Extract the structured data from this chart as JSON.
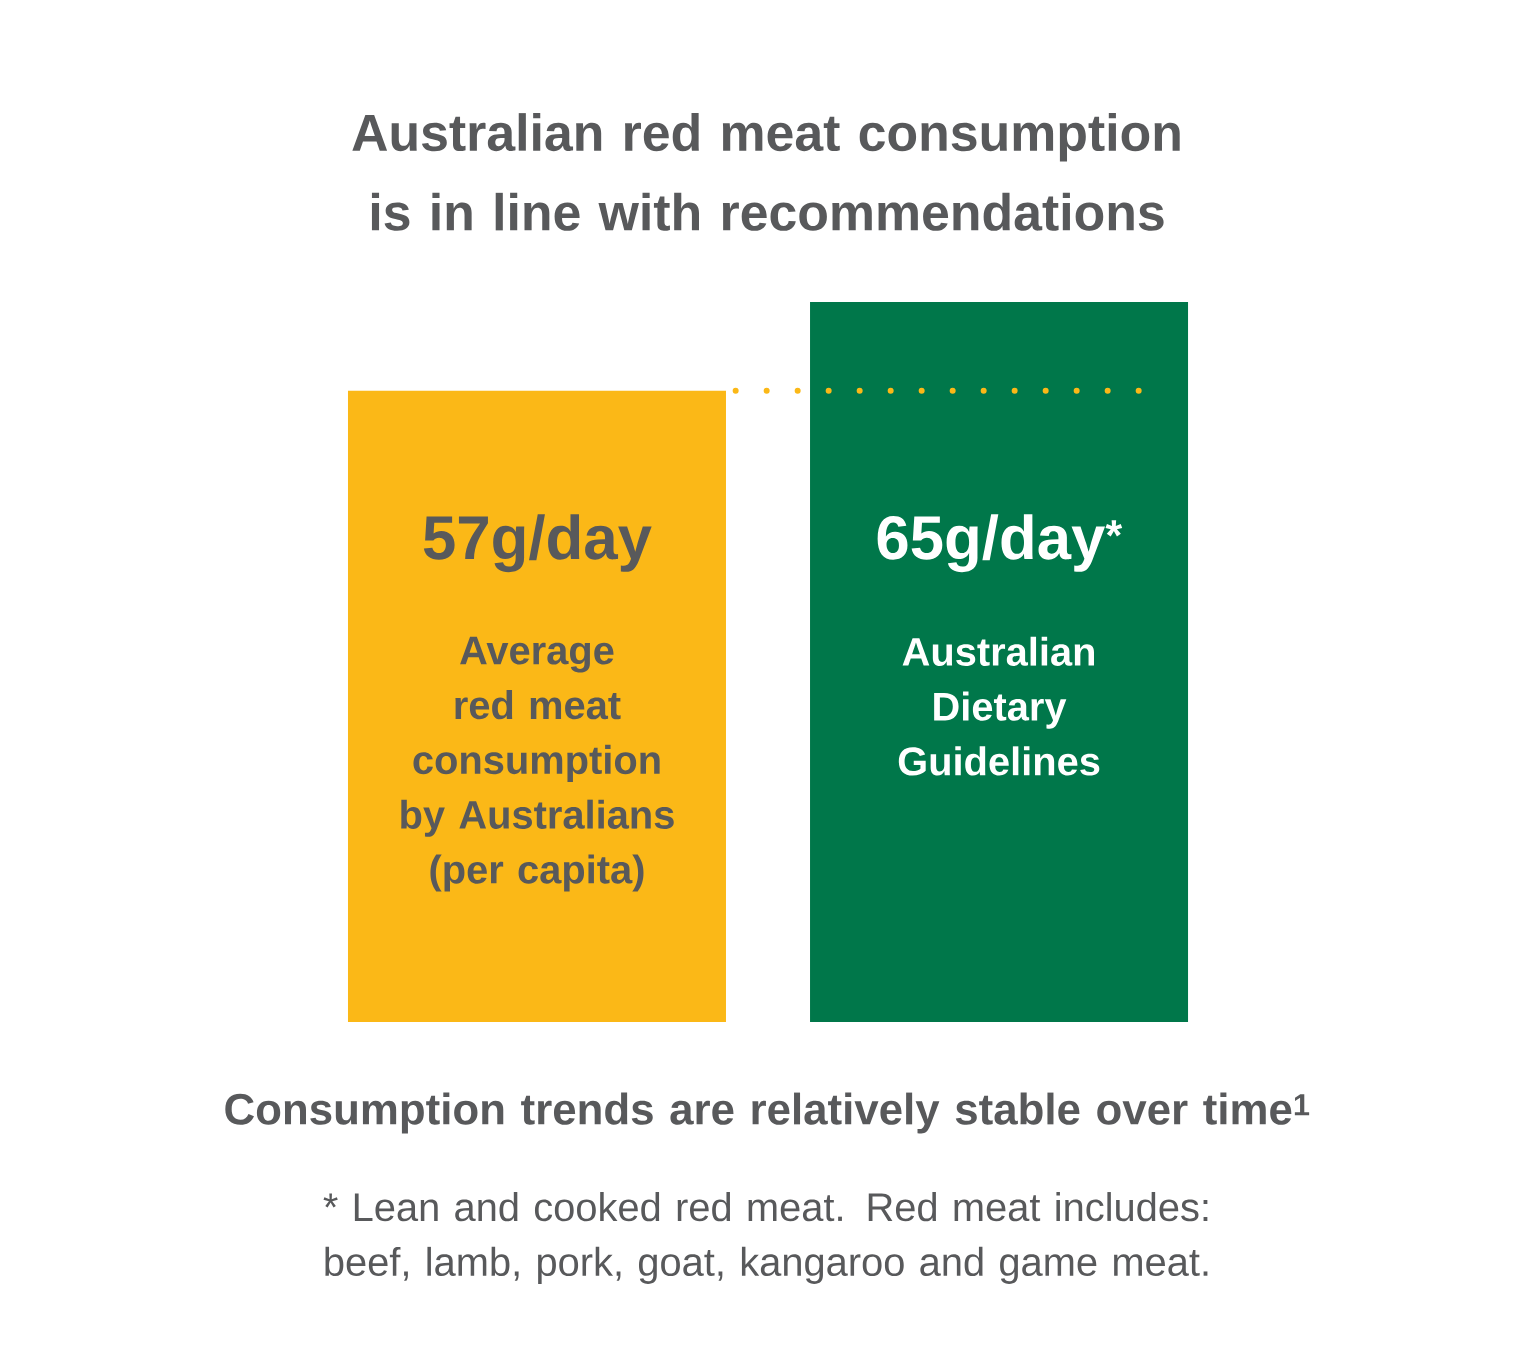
{
  "chart_data": {
    "type": "bar",
    "title": "Australian red meat consumption is in line with recommendations",
    "categories": [
      "Average red meat consumption by Australians (per capita)",
      "Australian Dietary Guidelines"
    ],
    "values": [
      57,
      65
    ],
    "colors": [
      "#fbb817",
      "#00774a"
    ],
    "value_labels": [
      "57g/day",
      "65g/day$^{*}$"
    ],
    "ref_lines": [
      {
        "axis": "y",
        "value": 57,
        "color": "#fbb817",
        "line_style": "dotted"
      }
    ],
    "annotations": [
      "Consumption trends are relatively stable over time$^{1}$",
      "* Lean and cooked red meat. Red meat includes: beef, lamb, pork, goat, kangaroo and game meat."
    ]
  }
}
